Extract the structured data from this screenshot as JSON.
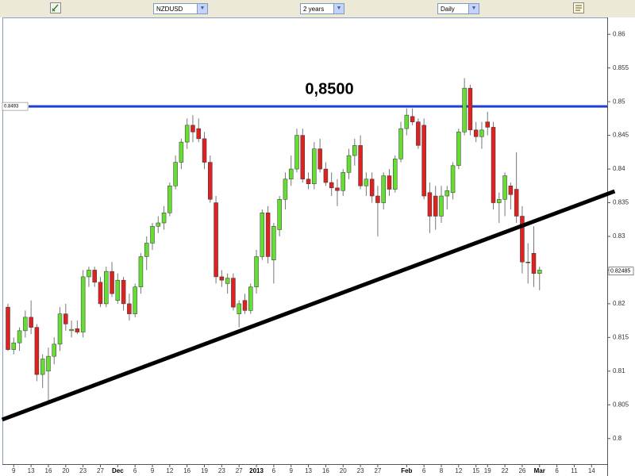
{
  "toolbar": {
    "symbol": "NZDUSD",
    "period": "2 years",
    "interval": "Daily"
  },
  "chart_data": {
    "type": "candlestick",
    "categories": [
      null,
      "9",
      null,
      null,
      "13",
      null,
      null,
      "16",
      null,
      null,
      "20",
      null,
      null,
      "23",
      null,
      null,
      "27",
      null,
      null,
      "Dec",
      null,
      null,
      "6",
      null,
      null,
      "9",
      null,
      null,
      "12",
      null,
      null,
      "16",
      null,
      null,
      "19",
      null,
      null,
      "23",
      null,
      null,
      "27",
      null,
      null,
      "2013",
      null,
      null,
      "6",
      null,
      null,
      "9",
      null,
      null,
      "13",
      null,
      null,
      "16",
      null,
      null,
      "20",
      null,
      null,
      "23",
      null,
      null,
      "27",
      null,
      null,
      null,
      null,
      "Feb",
      null,
      null,
      "6",
      null,
      null,
      "8",
      null,
      null,
      "12",
      null,
      null,
      "15",
      null,
      "19",
      null,
      null,
      "22",
      null,
      null,
      "26",
      null,
      null,
      "Mar",
      null,
      null,
      "6",
      null,
      null,
      "11",
      null,
      null,
      "14",
      null,
      null
    ],
    "open": [
      0.8195,
      0.8132,
      0.8142,
      0.816,
      0.818,
      0.8165,
      0.8095,
      0.81,
      0.8122,
      0.814,
      0.8185,
      0.816,
      0.8163,
      0.8158,
      0.824,
      0.825,
      0.8232,
      0.82,
      0.8248,
      0.8205,
      0.8235,
      0.82,
      0.8185,
      0.8225,
      0.827,
      0.829,
      0.8315,
      0.832,
      0.8335,
      0.8375,
      0.841,
      0.844,
      0.8465,
      0.846,
      0.8445,
      0.841,
      0.835,
      0.824,
      0.823,
      0.8238,
      0.8185,
      0.8205,
      0.819,
      0.8225,
      0.827,
      0.8335,
      0.8265,
      0.831,
      0.8355,
      0.8385,
      0.84,
      0.845,
      0.8385,
      0.8378,
      0.843,
      0.84,
      0.838,
      0.8372,
      0.8368,
      0.8395,
      0.842,
      0.8435,
      0.8375,
      0.8385,
      0.836,
      0.835,
      0.839,
      0.837,
      0.8415,
      0.846,
      0.8478,
      0.847,
      0.8465,
      0.8365,
      0.836,
      0.833,
      0.836,
      0.8365,
      0.8405,
      0.8455,
      0.852,
      0.8458,
      0.8448,
      0.847,
      0.8462,
      0.835,
      0.8355,
      0.8375,
      0.837,
      0.833,
      0.8262,
      0.8275,
      0.8245,
      null,
      null,
      null,
      null,
      null,
      null,
      null,
      null,
      null,
      null,
      null
    ],
    "high": [
      0.82,
      0.815,
      0.8165,
      0.819,
      0.8205,
      0.817,
      0.8125,
      0.8135,
      0.815,
      0.8195,
      0.82,
      0.8175,
      0.8175,
      0.825,
      0.8255,
      0.8255,
      0.824,
      0.8255,
      0.8262,
      0.8245,
      0.824,
      0.8215,
      0.823,
      0.8275,
      0.83,
      0.832,
      0.833,
      0.8345,
      0.838,
      0.842,
      0.8445,
      0.8475,
      0.848,
      0.8475,
      0.8455,
      0.842,
      0.836,
      0.825,
      0.8245,
      0.8245,
      0.8205,
      0.8215,
      0.823,
      0.828,
      0.834,
      0.8345,
      0.832,
      0.836,
      0.8395,
      0.842,
      0.846,
      0.846,
      0.8395,
      0.844,
      0.8445,
      0.841,
      0.8395,
      0.8385,
      0.84,
      0.843,
      0.8445,
      0.845,
      0.8395,
      0.8395,
      0.8375,
      0.8395,
      0.84,
      0.842,
      0.847,
      0.849,
      0.849,
      0.8475,
      0.8475,
      0.838,
      0.8375,
      0.8375,
      0.8375,
      0.841,
      0.846,
      0.8535,
      0.8525,
      0.847,
      0.847,
      0.8485,
      0.847,
      0.8365,
      0.8395,
      0.838,
      0.8425,
      0.8345,
      0.829,
      0.8315,
      0.8255,
      null,
      null,
      null,
      null,
      null,
      null,
      null,
      null,
      null,
      null,
      null
    ],
    "low": [
      0.813,
      0.8125,
      0.813,
      0.815,
      0.8155,
      0.8085,
      0.8075,
      0.8055,
      0.811,
      0.813,
      0.816,
      0.815,
      0.8155,
      0.815,
      0.8225,
      0.8225,
      0.8195,
      0.8195,
      0.821,
      0.82,
      0.819,
      0.8175,
      0.818,
      0.8215,
      0.825,
      0.828,
      0.8305,
      0.831,
      0.833,
      0.837,
      0.84,
      0.843,
      0.844,
      0.844,
      0.84,
      0.835,
      0.823,
      0.8225,
      0.8215,
      0.819,
      0.8165,
      0.8185,
      0.8185,
      0.8215,
      0.8265,
      0.826,
      0.823,
      0.83,
      0.834,
      0.8375,
      0.8395,
      0.838,
      0.837,
      0.837,
      0.8395,
      0.8375,
      0.836,
      0.8345,
      0.836,
      0.8385,
      0.8405,
      0.837,
      0.836,
      0.835,
      0.83,
      0.834,
      0.836,
      0.8365,
      0.841,
      0.845,
      0.8465,
      0.843,
      0.8355,
      0.8305,
      0.831,
      0.832,
      0.834,
      0.8355,
      0.84,
      0.845,
      0.845,
      0.844,
      0.843,
      0.845,
      0.834,
      0.832,
      0.833,
      0.834,
      0.832,
      0.8245,
      0.823,
      0.8225,
      0.822,
      null,
      null,
      null,
      null,
      null,
      null,
      null,
      null,
      null,
      null,
      null
    ],
    "close": [
      0.8132,
      0.8142,
      0.816,
      0.818,
      0.8165,
      0.8095,
      0.8118,
      0.8122,
      0.814,
      0.8185,
      0.817,
      0.8162,
      0.8158,
      0.824,
      0.825,
      0.8232,
      0.82,
      0.8248,
      0.8215,
      0.8235,
      0.82,
      0.8185,
      0.8225,
      0.827,
      0.829,
      0.8315,
      0.832,
      0.8335,
      0.8375,
      0.841,
      0.844,
      0.8465,
      0.8455,
      0.8445,
      0.841,
      0.8355,
      0.824,
      0.8235,
      0.8238,
      0.8195,
      0.82,
      0.819,
      0.8225,
      0.827,
      0.8335,
      0.827,
      0.8315,
      0.8355,
      0.8385,
      0.84,
      0.845,
      0.8385,
      0.8378,
      0.843,
      0.84,
      0.838,
      0.8372,
      0.8368,
      0.8395,
      0.842,
      0.8435,
      0.8375,
      0.8385,
      0.836,
      0.835,
      0.839,
      0.837,
      0.8415,
      0.846,
      0.848,
      0.847,
      0.8435,
      0.836,
      0.833,
      0.833,
      0.836,
      0.8368,
      0.8405,
      0.8455,
      0.852,
      0.8458,
      0.8448,
      0.8458,
      0.8462,
      0.835,
      0.8355,
      0.839,
      0.8362,
      0.833,
      0.8262,
      0.8262,
      0.8245,
      0.825,
      null,
      null,
      null,
      null,
      null,
      null,
      null,
      null,
      null,
      null,
      null
    ],
    "up_color": "#66dd33",
    "down_color": "#dd2222",
    "ylim": [
      0.7962,
      0.8625
    ],
    "yticks": [
      0.8,
      0.805,
      0.81,
      0.815,
      0.82,
      0.825,
      0.83,
      0.835,
      0.84,
      0.845,
      0.85,
      0.855,
      0.86
    ],
    "hline": {
      "value": 0.8493,
      "color": "#1f3fd8"
    },
    "annotation": "0,8500",
    "last_price": 0.82485,
    "trendline": {
      "x": [
        -1,
        105
      ],
      "y": [
        0.8028,
        0.8367
      ],
      "color": "#000000"
    }
  }
}
